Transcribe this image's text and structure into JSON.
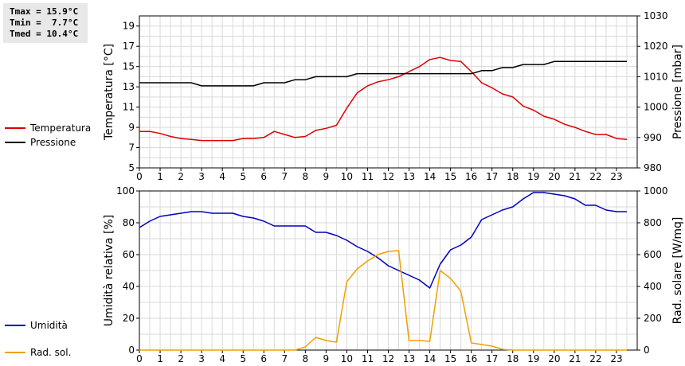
{
  "stats": {
    "tmax": "Tmax = 15.9°C",
    "tmin": "Tmin =  7.7°C",
    "tmed": "Tmed = 10.4°C"
  },
  "colors": {
    "temperature": "#dd0000",
    "pressure": "#000000",
    "humidity": "#0000bb",
    "radiation": "#f0a000",
    "grid": "#d9d9d9",
    "axis": "#000000"
  },
  "chart_data": [
    {
      "type": "line",
      "x_ticks": [
        "0",
        "1",
        "2",
        "3",
        "4",
        "5",
        "6",
        "7",
        "8",
        "9",
        "10",
        "11",
        "12",
        "13",
        "14",
        "15",
        "16",
        "17",
        "18",
        "19",
        "20",
        "21",
        "22",
        "23"
      ],
      "xlim": [
        0,
        24
      ],
      "y_left": {
        "label": "Temperatura [°C]",
        "lim": [
          5,
          20
        ],
        "ticks": [
          "5",
          "7",
          "9",
          "11",
          "13",
          "15",
          "17",
          "19"
        ]
      },
      "y_right": {
        "label": "Pressione [mbar]",
        "lim": [
          980,
          1030
        ],
        "ticks": [
          "980",
          "990",
          "1000",
          "1010",
          "1020",
          "1030"
        ]
      },
      "grid": true,
      "legend_placement": "left",
      "series": [
        {
          "name": "Temperatura",
          "axis": "left",
          "color": "#dd0000",
          "x": [
            0,
            0.5,
            1,
            1.5,
            2,
            2.5,
            3,
            3.5,
            4,
            4.5,
            5,
            5.5,
            6,
            6.5,
            7,
            7.5,
            8,
            8.5,
            9,
            9.5,
            10,
            10.5,
            11,
            11.5,
            12,
            12.5,
            13,
            13.5,
            14,
            14.5,
            15,
            15.5,
            16,
            16.5,
            17,
            17.5,
            18,
            18.5,
            19,
            19.5,
            20,
            20.5,
            21,
            21.5,
            22,
            22.5,
            23,
            23.5
          ],
          "values": [
            8.6,
            8.6,
            8.4,
            8.1,
            7.9,
            7.8,
            7.7,
            7.7,
            7.7,
            7.7,
            7.9,
            7.9,
            8.0,
            8.6,
            8.3,
            8.0,
            8.1,
            8.7,
            8.9,
            9.2,
            10.9,
            12.4,
            13.1,
            13.5,
            13.7,
            14.0,
            14.5,
            15.0,
            15.7,
            15.9,
            15.6,
            15.5,
            14.5,
            13.4,
            12.9,
            12.3,
            12.0,
            11.1,
            10.7,
            10.1,
            9.8,
            9.3,
            9.0,
            8.6,
            8.3,
            8.3,
            7.9,
            7.8
          ]
        },
        {
          "name": "Pressione",
          "axis": "right",
          "color": "#000000",
          "x": [
            0,
            2.5,
            3,
            5.5,
            6,
            7,
            7.5,
            8,
            8.5,
            10,
            10.5,
            16,
            16.5,
            17,
            17.5,
            18,
            18.5,
            19.5,
            20,
            23.5
          ],
          "values": [
            1008,
            1008,
            1007,
            1007,
            1008,
            1008,
            1009,
            1009,
            1010,
            1010,
            1011,
            1011,
            1012,
            1012,
            1013,
            1013,
            1014,
            1014,
            1015,
            1015
          ]
        }
      ]
    },
    {
      "type": "line",
      "x_ticks": [
        "0",
        "1",
        "2",
        "3",
        "4",
        "5",
        "6",
        "7",
        "8",
        "9",
        "10",
        "11",
        "12",
        "13",
        "14",
        "15",
        "16",
        "17",
        "18",
        "19",
        "20",
        "21",
        "22",
        "23"
      ],
      "xlim": [
        0,
        24
      ],
      "y_left": {
        "label": "Umidità relativa [%]",
        "lim": [
          0,
          100
        ],
        "ticks": [
          "0",
          "20",
          "40",
          "60",
          "80",
          "100"
        ]
      },
      "y_right": {
        "label": "Rad. solare [W/mq]",
        "lim": [
          0,
          1000
        ],
        "ticks": [
          "0",
          "200",
          "400",
          "600",
          "800",
          "1000"
        ]
      },
      "grid": true,
      "legend_placement": "left",
      "series": [
        {
          "name": "Umidità",
          "axis": "left",
          "color": "#0000bb",
          "x": [
            0,
            0.5,
            1,
            1.5,
            2,
            2.5,
            3,
            3.5,
            4,
            4.5,
            5,
            5.5,
            6,
            6.5,
            7,
            7.5,
            8,
            8.5,
            9,
            9.5,
            10,
            10.5,
            11,
            11.5,
            12,
            12.5,
            13,
            13.5,
            14,
            14.5,
            15,
            15.5,
            16,
            16.5,
            17,
            17.5,
            18,
            18.5,
            19,
            19.5,
            20,
            20.5,
            21,
            21.5,
            22,
            22.5,
            23,
            23.5
          ],
          "values": [
            77,
            81,
            84,
            85,
            86,
            87,
            87,
            86,
            86,
            86,
            84,
            83,
            81,
            78,
            78,
            78,
            78,
            74,
            74,
            72,
            69,
            65,
            62,
            58,
            53,
            50,
            47,
            44,
            39,
            54,
            63,
            66,
            71,
            82,
            85,
            88,
            90,
            95,
            99,
            99,
            98,
            97,
            95,
            91,
            91,
            88,
            87,
            87
          ]
        },
        {
          "name": "Rad. sol.",
          "axis": "right",
          "color": "#f0a000",
          "x": [
            0,
            0.5,
            1,
            1.5,
            2,
            2.5,
            3,
            3.5,
            4,
            4.5,
            5,
            5.5,
            6,
            6.5,
            7,
            7.5,
            8,
            8.5,
            9,
            9.5,
            10,
            10.5,
            11,
            11.5,
            12,
            12.5,
            13,
            13.5,
            14,
            14.5,
            15,
            15.5,
            16,
            16.5,
            17,
            17.5,
            18,
            18.5,
            19,
            19.5,
            20,
            20.5,
            21,
            21.5,
            22,
            22.5,
            23,
            23.5
          ],
          "values": [
            0,
            0,
            0,
            0,
            0,
            0,
            0,
            0,
            0,
            0,
            0,
            0,
            0,
            0,
            0,
            0,
            20,
            80,
            60,
            50,
            430,
            510,
            560,
            600,
            620,
            625,
            60,
            60,
            55,
            500,
            450,
            370,
            45,
            35,
            25,
            5,
            0,
            0,
            0,
            0,
            0,
            0,
            0,
            0,
            0,
            0,
            0,
            0
          ]
        }
      ]
    }
  ]
}
